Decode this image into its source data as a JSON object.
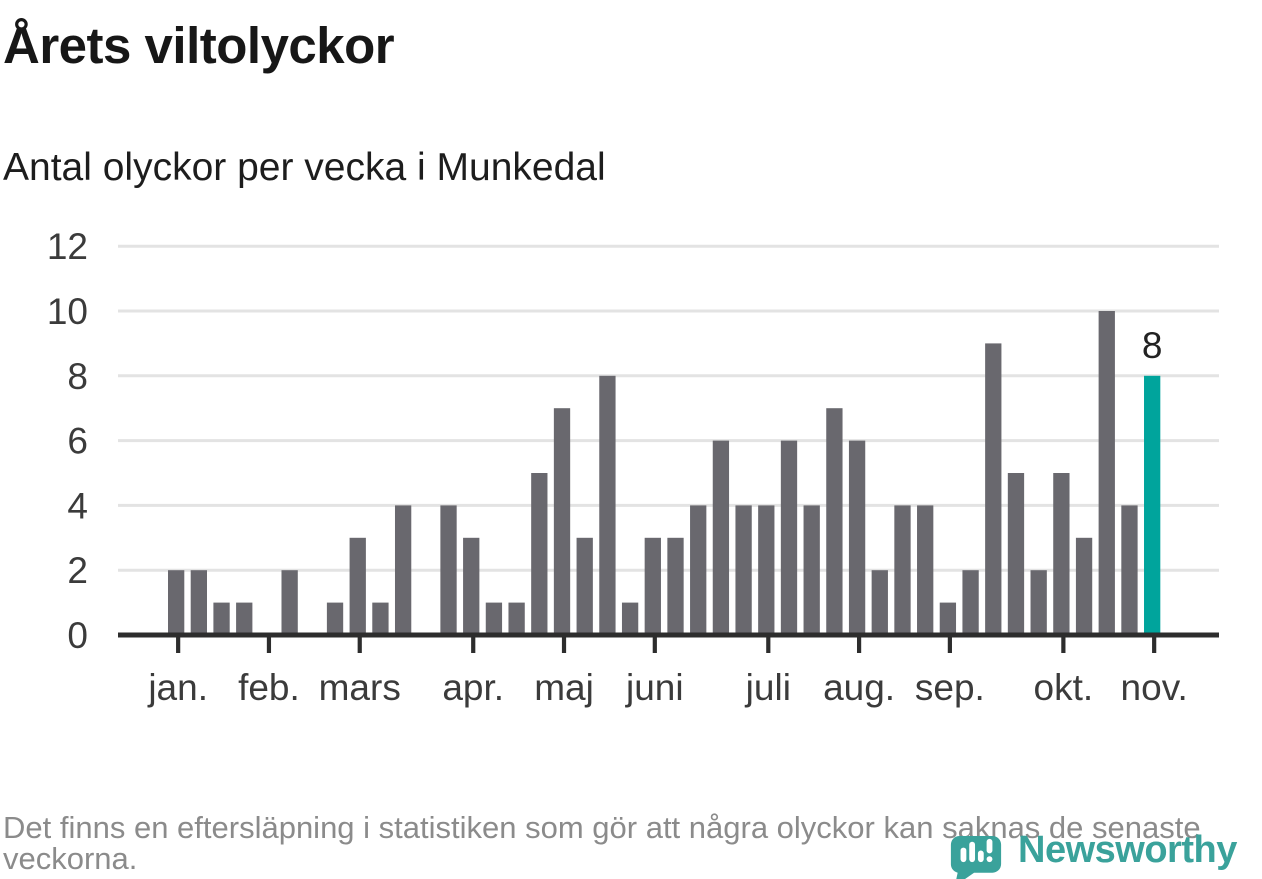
{
  "header": {
    "title": "Årets viltolyckor",
    "subtitle": "Antal olyckor per vecka i Munkedal"
  },
  "chart_data": {
    "type": "bar",
    "title": "Årets viltolyckor",
    "subtitle": "Antal olyckor per vecka i Munkedal",
    "unit_description": "antal olyckor per vecka",
    "values": [
      2,
      2,
      1,
      1,
      0,
      2,
      0,
      1,
      3,
      1,
      4,
      0,
      4,
      3,
      1,
      1,
      5,
      7,
      3,
      8,
      1,
      3,
      3,
      4,
      6,
      4,
      4,
      6,
      4,
      7,
      6,
      2,
      4,
      4,
      1,
      2,
      9,
      5,
      2,
      5,
      3,
      10,
      4,
      8
    ],
    "months": [
      {
        "label": "jan.",
        "week": 1
      },
      {
        "label": "feb.",
        "week": 5
      },
      {
        "label": "mars",
        "week": 9
      },
      {
        "label": "apr.",
        "week": 14
      },
      {
        "label": "maj",
        "week": 18
      },
      {
        "label": "juni",
        "week": 22
      },
      {
        "label": "juli",
        "week": 27
      },
      {
        "label": "aug.",
        "week": 31
      },
      {
        "label": "sep.",
        "week": 35
      },
      {
        "label": "okt.",
        "week": 40
      },
      {
        "label": "nov.",
        "week": 44
      }
    ],
    "ylim": [
      0,
      12
    ],
    "yticks": [
      0,
      2,
      4,
      6,
      8,
      10,
      12
    ],
    "grid": true,
    "legend": "none",
    "highlight": {
      "index": 43,
      "value": 8,
      "label": "8"
    },
    "colors": {
      "bar": "#69686e",
      "accent": "#00a49c",
      "grid": "#e3e3e3",
      "axis": "#2d2d2d"
    }
  },
  "footer": {
    "note": "Det finns en eftersläpning i statistiken som gör att några olyckor kan saknas de senaste veckorna."
  },
  "logo": {
    "text": "Newsworthy"
  }
}
